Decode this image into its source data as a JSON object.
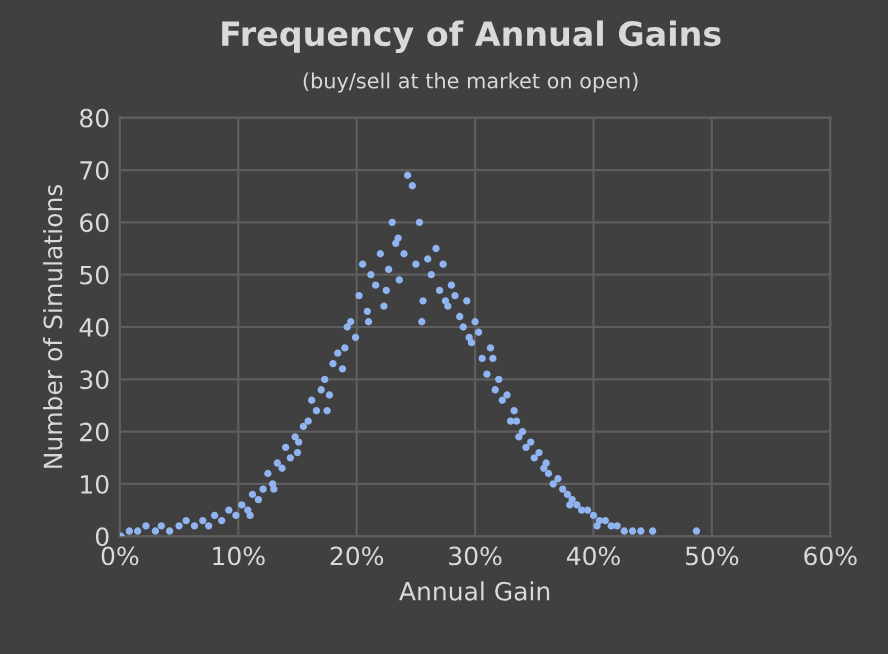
{
  "chart_data": {
    "type": "scatter",
    "title": "Frequency of Annual Gains",
    "subtitle": "(buy/sell at the market on open)",
    "xlabel": "Annual Gain",
    "ylabel": "Number of Simulations",
    "xlim": [
      0,
      60
    ],
    "ylim": [
      0,
      80
    ],
    "xticks": [
      {
        "value": 0,
        "label": "0%"
      },
      {
        "value": 10,
        "label": "10%"
      },
      {
        "value": 20,
        "label": "20%"
      },
      {
        "value": 30,
        "label": "30%"
      },
      {
        "value": 40,
        "label": "40%"
      },
      {
        "value": 50,
        "label": "50%"
      },
      {
        "value": 60,
        "label": "60%"
      }
    ],
    "yticks": [
      0,
      10,
      20,
      30,
      40,
      50,
      60,
      70,
      80
    ],
    "grid": true,
    "marker": "circle",
    "series": [
      {
        "color": "#8fb4f0",
        "x": [
          0.1,
          0.8,
          1.5,
          2.2,
          3.0,
          3.5,
          4.2,
          5.0,
          5.6,
          6.3,
          7.0,
          7.5,
          8.0,
          8.6,
          9.2,
          9.8,
          10.3,
          10.8,
          11.2,
          11.7,
          12.1,
          12.5,
          12.9,
          13.3,
          13.7,
          14.0,
          14.4,
          14.8,
          15.1,
          15.5,
          15.9,
          16.2,
          16.6,
          17.0,
          17.3,
          17.7,
          18.0,
          18.4,
          18.8,
          19.2,
          19.5,
          19.9,
          20.2,
          20.5,
          20.9,
          21.2,
          21.6,
          22.0,
          22.3,
          22.7,
          23.0,
          23.3,
          23.6,
          24.0,
          24.3,
          24.7,
          25.0,
          25.3,
          25.6,
          26.0,
          26.3,
          26.7,
          27.0,
          27.3,
          27.7,
          28.0,
          28.3,
          28.7,
          29.0,
          29.3,
          29.7,
          30.0,
          30.3,
          30.6,
          31.0,
          31.3,
          31.7,
          32.0,
          32.3,
          32.7,
          33.0,
          33.3,
          33.7,
          34.0,
          34.3,
          34.7,
          35.0,
          35.4,
          35.8,
          36.2,
          36.6,
          37.0,
          37.4,
          37.8,
          38.2,
          38.6,
          39.0,
          39.5,
          40.0,
          40.5,
          41.0,
          41.5,
          42.0,
          42.6,
          43.3,
          44.0,
          45.0,
          48.7,
          11.0,
          13.0,
          15.0,
          17.5,
          19.0,
          21.0,
          22.5,
          23.5,
          25.5,
          27.5,
          29.5,
          31.5,
          33.5,
          36.0,
          38.0,
          40.3
        ],
        "values": [
          0,
          1,
          1,
          2,
          1,
          2,
          1,
          2,
          3,
          2,
          3,
          2,
          4,
          3,
          5,
          4,
          6,
          5,
          8,
          7,
          9,
          12,
          10,
          14,
          13,
          17,
          15,
          19,
          18,
          21,
          22,
          26,
          24,
          28,
          30,
          27,
          33,
          35,
          32,
          40,
          41,
          38,
          46,
          52,
          43,
          50,
          48,
          54,
          44,
          51,
          60,
          56,
          49,
          54,
          69,
          67,
          52,
          60,
          45,
          53,
          50,
          55,
          47,
          52,
          44,
          48,
          46,
          42,
          40,
          45,
          37,
          41,
          39,
          34,
          31,
          36,
          28,
          30,
          26,
          27,
          22,
          24,
          19,
          20,
          17,
          18,
          15,
          16,
          13,
          12,
          10,
          11,
          9,
          8,
          7,
          6,
          5,
          5,
          4,
          3,
          3,
          2,
          2,
          1,
          1,
          1,
          1,
          1,
          4,
          9,
          16,
          24,
          36,
          41,
          47,
          57,
          41,
          45,
          38,
          34,
          22,
          14,
          6,
          2
        ]
      }
    ]
  }
}
